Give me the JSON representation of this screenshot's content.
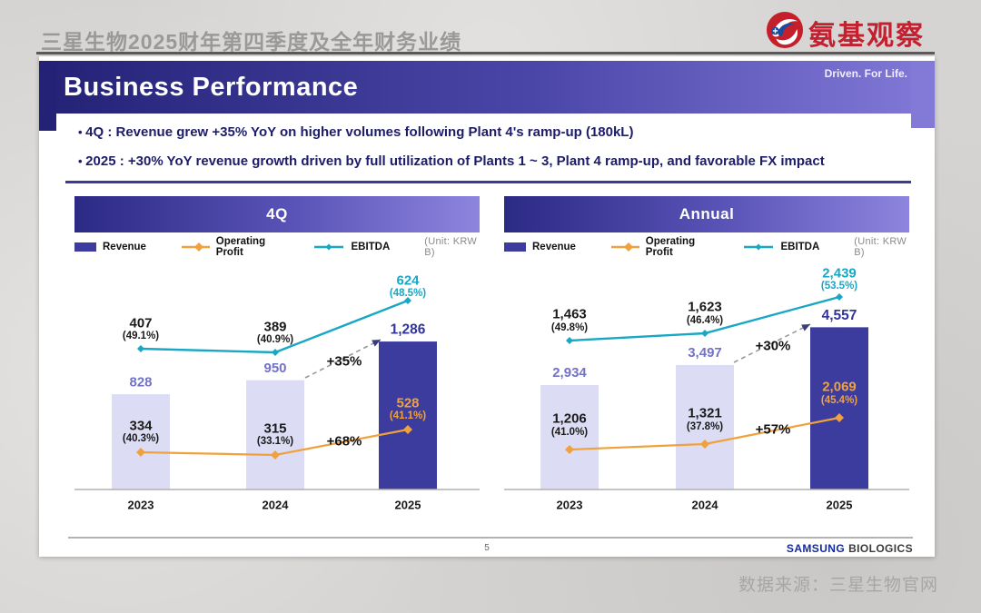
{
  "page": {
    "header_title": "三星生物2025财年第四季度及全年财务业绩",
    "logo_text": "氨基观察",
    "source_note": "数据来源：三星生物官网"
  },
  "slide": {
    "title": "Business Performance",
    "tagline": "Driven. For Life.",
    "bullets": [
      "4Q : Revenue grew +35% YoY on higher volumes following Plant 4's ramp-up (180kL)",
      "2025 : +30% YoY revenue growth driven by full utilization of Plants 1 ~ 3, Plant 4 ramp-up, and favorable FX impact"
    ],
    "footer": {
      "page_number": "5",
      "brand_primary": "SAMSUNG",
      "brand_secondary": "BIOLOGICS"
    }
  },
  "legend": {
    "revenue": "Revenue",
    "operating_profit": "Operating Profit",
    "ebitda": "EBITDA",
    "unit": "(Unit: KRW B)"
  },
  "colors": {
    "bar_light": "#dcdcf4",
    "bar_dark": "#3c3c9e",
    "op_orange": "#f0a13c",
    "ebitda_teal": "#18a7c4",
    "label_purple": "#7372c6",
    "label_indigo": "#33339b",
    "label_black": "#1a1a1a",
    "axis_gray": "#b0b0b0",
    "arrow_gray": "#999999",
    "arrowhead_navy": "#3b3b7d"
  },
  "chart_data": [
    {
      "type": "bar",
      "title": "4Q",
      "unit": "(Unit: KRW B)",
      "categories": [
        "2023",
        "2024",
        "2025"
      ],
      "series": [
        {
          "name": "Revenue",
          "render": "bar",
          "values": [
            828,
            950,
            1286
          ]
        },
        {
          "name": "Operating Profit",
          "render": "line",
          "values": [
            334,
            315,
            528
          ],
          "margins": [
            "(40.3%)",
            "(33.1%)",
            "(41.1%)"
          ]
        },
        {
          "name": "EBITDA",
          "render": "line",
          "values": [
            407,
            389,
            624
          ],
          "margins": [
            "(49.1%)",
            "(40.9%)",
            "(48.5%)"
          ]
        }
      ],
      "annotations": {
        "revenue_growth": "+35%",
        "operating_profit_growth": "+68%"
      }
    },
    {
      "type": "bar",
      "title": "Annual",
      "unit": "(Unit: KRW B)",
      "categories": [
        "2023",
        "2024",
        "2025"
      ],
      "series": [
        {
          "name": "Revenue",
          "render": "bar",
          "values": [
            2934,
            3497,
            4557
          ]
        },
        {
          "name": "Operating Profit",
          "render": "line",
          "values": [
            1206,
            1321,
            2069
          ],
          "margins": [
            "(41.0%)",
            "(37.8%)",
            "(45.4%)"
          ]
        },
        {
          "name": "EBITDA",
          "render": "line",
          "values": [
            1463,
            1623,
            2439
          ],
          "margins": [
            "(49.8%)",
            "(46.4%)",
            "(53.5%)"
          ]
        }
      ],
      "annotations": {
        "revenue_growth": "+30%",
        "operating_profit_growth": "+57%"
      }
    }
  ]
}
